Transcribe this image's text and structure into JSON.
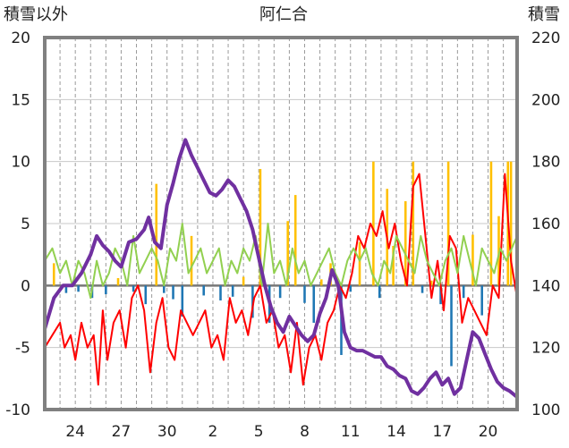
{
  "chart_data": {
    "type": "line",
    "title": "阿仁合",
    "y_left_label": "積雪以外",
    "y_right_label": "積雪",
    "y_left_ticks": [
      "20",
      "15",
      "10",
      "5",
      "0",
      "-5",
      "-10"
    ],
    "y_right_ticks": [
      "220",
      "200",
      "180",
      "160",
      "140",
      "120",
      "100"
    ],
    "ylim_left": [
      -10,
      20
    ],
    "ylim_right": [
      100,
      220
    ],
    "x_ticks": [
      {
        "day": 24,
        "label": "24"
      },
      {
        "day": 27,
        "label": "27"
      },
      {
        "day": 30,
        "label": "30"
      },
      {
        "day": 33,
        "label": "2"
      },
      {
        "day": 36,
        "label": "5"
      },
      {
        "day": 39,
        "label": "8"
      },
      {
        "day": 42,
        "label": "11"
      },
      {
        "day": 45,
        "label": "14"
      },
      {
        "day": 48,
        "label": "17"
      },
      {
        "day": 51,
        "label": "20"
      }
    ],
    "x_range": [
      22,
      52.9
    ],
    "grid": {
      "vertical": "dashed, daily",
      "horizontal": "solid"
    },
    "colors": {
      "snow_depth": "#7030a0",
      "temperature": "#ff0000",
      "temperature2": "#92d050",
      "precip_pos": "#ffc000",
      "precip_neg": "#1f77b4"
    },
    "series": [
      {
        "key": "temperature",
        "axis": "left",
        "color": "#ff0000",
        "x": [
          22.0,
          22.5,
          23.0,
          23.3,
          23.7,
          24.0,
          24.4,
          24.8,
          25.2,
          25.5,
          25.8,
          26.1,
          26.5,
          26.9,
          27.3,
          27.7,
          28.1,
          28.5,
          28.9,
          29.3,
          29.7,
          30.1,
          30.5,
          30.9,
          31.3,
          31.7,
          32.1,
          32.5,
          32.9,
          33.3,
          33.7,
          34.1,
          34.5,
          34.9,
          35.3,
          35.7,
          36.1,
          36.5,
          36.9,
          37.3,
          37.7,
          38.1,
          38.5,
          38.9,
          39.3,
          39.7,
          40.1,
          40.5,
          40.9,
          41.3,
          41.7,
          42.1,
          42.5,
          42.9,
          43.3,
          43.7,
          44.1,
          44.5,
          44.9,
          45.3,
          45.7,
          46.1,
          46.5,
          46.9,
          47.3,
          47.7,
          48.1,
          48.5,
          48.9,
          49.3,
          49.7,
          50.1,
          50.5,
          50.9,
          51.3,
          51.7,
          52.1,
          52.5,
          52.9
        ],
        "y": [
          -5,
          -4,
          -3,
          -5,
          -4,
          -6,
          -3,
          -5,
          -4,
          -8,
          -2,
          -6,
          -3,
          -2,
          -5,
          -1,
          0,
          -2,
          -7,
          -3,
          -1,
          -5,
          -6,
          -2,
          -3,
          -4,
          -3,
          -2,
          -5,
          -4,
          -6,
          -1,
          -3,
          -2,
          -4,
          -1,
          0,
          -3,
          -2,
          -5,
          -4,
          -7,
          -3,
          -8,
          -5,
          -4,
          -6,
          -3,
          -2,
          0,
          -1,
          1,
          4,
          3,
          5,
          4,
          6,
          3,
          5,
          2,
          0,
          8,
          9,
          4,
          -1,
          2,
          -2,
          4,
          3,
          -3,
          -1,
          -2,
          -3,
          -4,
          0,
          -1,
          9,
          2,
          -1
        ]
      },
      {
        "key": "temperature2",
        "axis": "left",
        "color": "#92d050",
        "x": [
          22.0,
          22.5,
          23.0,
          23.4,
          23.8,
          24.2,
          24.6,
          25.0,
          25.4,
          25.8,
          26.2,
          26.6,
          27.0,
          27.4,
          27.8,
          28.2,
          28.6,
          29.0,
          29.4,
          29.8,
          30.2,
          30.6,
          31.0,
          31.4,
          31.8,
          32.2,
          32.6,
          33.0,
          33.4,
          33.8,
          34.2,
          34.6,
          35.0,
          35.4,
          35.8,
          36.2,
          36.6,
          37.0,
          37.4,
          37.8,
          38.2,
          38.6,
          39.0,
          39.4,
          39.8,
          40.2,
          40.6,
          41.0,
          41.4,
          41.8,
          42.2,
          42.6,
          43.0,
          43.4,
          43.8,
          44.2,
          44.6,
          45.0,
          45.4,
          45.8,
          46.2,
          46.6,
          47.0,
          47.4,
          47.8,
          48.2,
          48.6,
          49.0,
          49.4,
          49.8,
          50.2,
          50.6,
          51.0,
          51.4,
          51.8,
          52.2,
          52.9
        ],
        "y": [
          2,
          3,
          1,
          2,
          0,
          2,
          1,
          -1,
          2,
          0,
          1,
          3,
          2,
          0,
          4,
          1,
          2,
          3,
          2,
          0,
          3,
          2,
          5,
          1,
          2,
          3,
          1,
          2,
          3,
          0,
          2,
          1,
          3,
          2,
          4,
          0,
          5,
          1,
          2,
          0,
          3,
          1,
          2,
          0,
          1,
          2,
          3,
          1,
          0,
          2,
          3,
          2,
          3,
          1,
          0,
          2,
          1,
          4,
          3,
          2,
          1,
          4,
          2,
          1,
          0,
          2,
          3,
          1,
          4,
          2,
          0,
          3,
          2,
          1,
          3,
          2,
          4
        ]
      },
      {
        "key": "snow_depth",
        "axis": "right",
        "color": "#7030a0",
        "x": [
          22.0,
          22.6,
          23.2,
          23.8,
          24.4,
          25.0,
          25.4,
          25.8,
          26.2,
          26.6,
          27.0,
          27.5,
          28.0,
          28.5,
          28.8,
          29.2,
          29.6,
          30.0,
          30.4,
          30.8,
          31.2,
          31.6,
          32.0,
          32.4,
          32.8,
          33.2,
          33.6,
          34.0,
          34.4,
          34.8,
          35.2,
          35.6,
          36.0,
          36.4,
          36.8,
          37.2,
          37.6,
          38.0,
          38.4,
          38.8,
          39.2,
          39.6,
          40.0,
          40.4,
          40.8,
          41.2,
          41.6,
          42.0,
          42.4,
          42.8,
          43.2,
          43.6,
          44.0,
          44.4,
          44.8,
          45.2,
          45.6,
          46.0,
          46.4,
          46.8,
          47.2,
          47.6,
          48.0,
          48.4,
          48.8,
          49.2,
          49.6,
          50.0,
          50.4,
          50.8,
          51.2,
          51.6,
          52.0,
          52.4,
          52.9
        ],
        "y": [
          126,
          136,
          140,
          140,
          144,
          150,
          156,
          153,
          151,
          148,
          146,
          154,
          155,
          158,
          162,
          154,
          152,
          166,
          173,
          181,
          187,
          182,
          178,
          174,
          170,
          169,
          171,
          174,
          172,
          168,
          164,
          158,
          149,
          140,
          133,
          128,
          125,
          130,
          127,
          124,
          122,
          124,
          131,
          136,
          145,
          140,
          125,
          120,
          119,
          119,
          118,
          117,
          117,
          114,
          113,
          111,
          110,
          106,
          105,
          107,
          110,
          112,
          108,
          110,
          105,
          107,
          116,
          125,
          123,
          118,
          113,
          109,
          107,
          106,
          104
        ]
      }
    ],
    "bars": {
      "axis": "left",
      "positive_color": "#ffc000",
      "negative_color": "#1f77b4",
      "items": [
        {
          "x": 22.6,
          "v": 1.8
        },
        {
          "x": 23.4,
          "v": -0.6
        },
        {
          "x": 24.2,
          "v": -0.5
        },
        {
          "x": 25.1,
          "v": -1.0
        },
        {
          "x": 26.0,
          "v": -0.7
        },
        {
          "x": 26.8,
          "v": 0.6
        },
        {
          "x": 27.8,
          "v": -0.5
        },
        {
          "x": 28.6,
          "v": -1.5
        },
        {
          "x": 29.3,
          "v": 8.2
        },
        {
          "x": 29.8,
          "v": -0.6
        },
        {
          "x": 30.4,
          "v": -1.1
        },
        {
          "x": 31.0,
          "v": -2.5
        },
        {
          "x": 31.6,
          "v": 4.0
        },
        {
          "x": 32.4,
          "v": -0.8
        },
        {
          "x": 33.5,
          "v": -1.2
        },
        {
          "x": 34.3,
          "v": -0.9
        },
        {
          "x": 35.0,
          "v": 0.7
        },
        {
          "x": 35.6,
          "v": -2.6
        },
        {
          "x": 36.1,
          "v": 9.4
        },
        {
          "x": 36.7,
          "v": -3.0
        },
        {
          "x": 37.4,
          "v": -1.0
        },
        {
          "x": 37.9,
          "v": 5.2
        },
        {
          "x": 38.4,
          "v": 7.3
        },
        {
          "x": 39.0,
          "v": -1.4
        },
        {
          "x": 39.6,
          "v": -3.0
        },
        {
          "x": 40.1,
          "v": 0.5
        },
        {
          "x": 40.7,
          "v": 1.8
        },
        {
          "x": 41.4,
          "v": -5.6
        },
        {
          "x": 42.0,
          "v": -0.5
        },
        {
          "x": 42.6,
          "v": 3.5
        },
        {
          "x": 43.5,
          "v": 10.0
        },
        {
          "x": 43.9,
          "v": -1.0
        },
        {
          "x": 44.4,
          "v": 7.8
        },
        {
          "x": 44.8,
          "v": 3.2
        },
        {
          "x": 45.6,
          "v": 6.8
        },
        {
          "x": 46.1,
          "v": 10.0
        },
        {
          "x": 46.7,
          "v": -0.6
        },
        {
          "x": 47.3,
          "v": 0.4
        },
        {
          "x": 47.9,
          "v": -1.5
        },
        {
          "x": 48.4,
          "v": 10.0
        },
        {
          "x": 48.6,
          "v": -6.5
        },
        {
          "x": 49.4,
          "v": -1.0
        },
        {
          "x": 50.0,
          "v": 4.1
        },
        {
          "x": 50.6,
          "v": -2.4
        },
        {
          "x": 51.2,
          "v": 10.0
        },
        {
          "x": 51.7,
          "v": 5.6
        },
        {
          "x": 52.3,
          "v": 10.0
        },
        {
          "x": 52.5,
          "v": 10.0
        }
      ]
    }
  }
}
